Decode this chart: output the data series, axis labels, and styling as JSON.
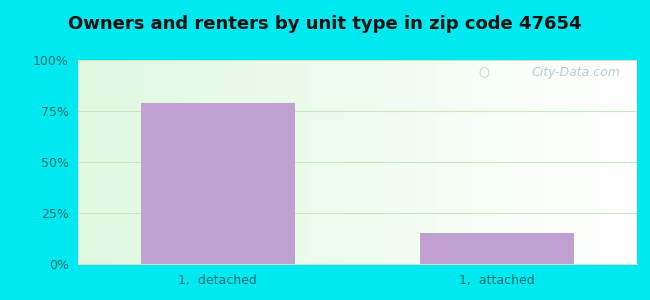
{
  "title": "Owners and renters by unit type in zip code 47654",
  "categories": [
    "1,  detached",
    "1,  attached"
  ],
  "values": [
    79,
    15
  ],
  "bar_color": "#c0a0d0",
  "yticks": [
    0,
    25,
    50,
    75,
    100
  ],
  "ytick_labels": [
    "0%",
    "25%",
    "50%",
    "75%",
    "100%"
  ],
  "ylim": [
    0,
    100
  ],
  "outer_bg": "#00e8f0",
  "title_fontsize": 13,
  "title_color": "#111111",
  "tick_color": "#1a7070",
  "grid_color": "#c8e8c0",
  "watermark": "City-Data.com"
}
